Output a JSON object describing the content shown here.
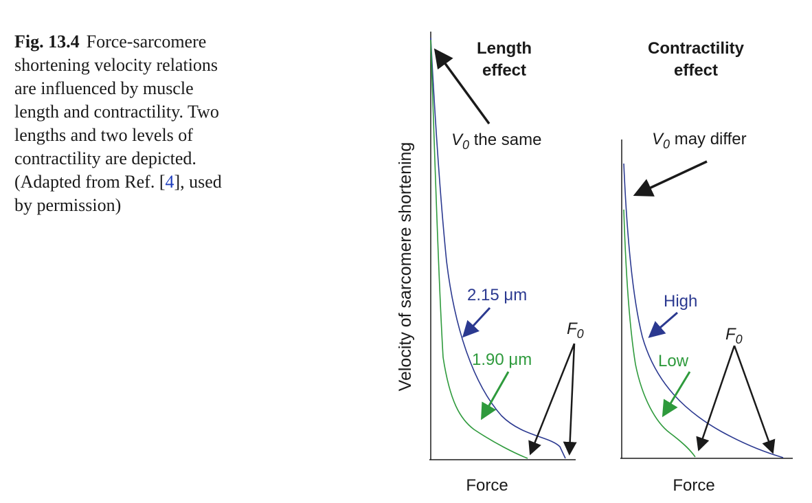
{
  "caption": {
    "fig_number": "Fig. 13.4",
    "text_before_ref": "Force-sarcomere shortening velocity relations are influenced by muscle length and contractility. Two lengths and two levels of contractility are depicted. (Adapted from Ref. [",
    "ref": "4",
    "text_after_ref": "], used by permission)"
  },
  "colors": {
    "blue_curve": "#2b3990",
    "green_curve": "#2e9a3c",
    "text_dark": "#1a1a1a",
    "ref_link": "#1f3fbf"
  },
  "figure": {
    "y_axis_label": "Velocity of sarcomere shortening",
    "left_panel": {
      "title_line1": "Length",
      "title_line2": "effect",
      "v0_symbol": "V",
      "v0_sub": "0",
      "v0_text": " the same",
      "blue_label": "2.15 μm",
      "green_label": "1.90 μm",
      "f0_symbol": "F",
      "f0_sub": "0",
      "x_label": "Force"
    },
    "right_panel": {
      "title_line1": "Contractility",
      "title_line2": "effect",
      "v0_symbol": "V",
      "v0_sub": "0",
      "v0_text": " may differ",
      "blue_label": "High",
      "green_label": "Low",
      "f0_symbol": "F",
      "f0_sub": "0",
      "x_label": "Force"
    }
  }
}
